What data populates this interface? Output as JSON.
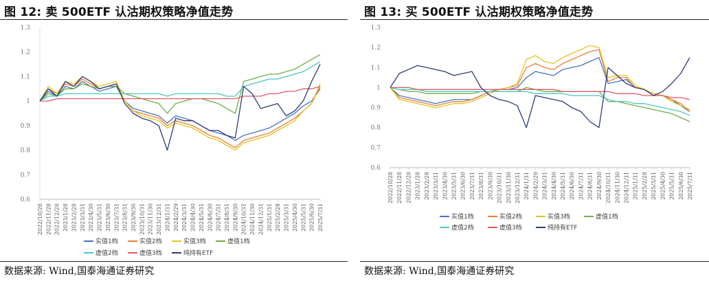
{
  "figures": [
    {
      "title": "图 12:  卖 500ETF 认沽期权策略净值走势",
      "source": "数据来源:  Wind,国泰海通证券研究"
    },
    {
      "title": "图 13:  买 500ETF 认沽期权策略净值走势",
      "source": "数据来源:  Wind,国泰海通证券研究"
    }
  ],
  "chart_data": [
    {
      "type": "line",
      "title": "",
      "xlabel": "",
      "ylabel": "",
      "ylim": [
        0.6,
        1.3
      ],
      "yticks": [
        "0.6",
        "0.7",
        "0.8",
        "0.9",
        "1",
        "1.1",
        "1.2",
        "1.3"
      ],
      "grid": false,
      "legend_position": "bottom",
      "categories": [
        "2022/10/28",
        "2022/11/28",
        "2022/12/28",
        "2023/1/28",
        "2023/2/28",
        "2023/3/31",
        "2023/4/30",
        "2023/5/31",
        "2023/6/30",
        "2023/7/31",
        "2023/8/31",
        "2023/9/30",
        "2023/10/31",
        "2023/11/30",
        "2023/12/31",
        "2024/1/31",
        "2024/2/29",
        "2024/3/31",
        "2024/4/30",
        "2024/5/31",
        "2024/6/30",
        "2024/7/31",
        "2024/8/31",
        "2024/9/30",
        "2024/10/31",
        "2024/11/30",
        "2024/12/31",
        "2025/1/31",
        "2025/2/28",
        "2025/3/31",
        "2025/4/30",
        "2025/5/31",
        "2025/6/30",
        "2025/7/31"
      ],
      "series": [
        {
          "name": "实值1档",
          "color": "#4472c4",
          "values": [
            1.0,
            1.04,
            1.02,
            1.06,
            1.05,
            1.08,
            1.06,
            1.04,
            1.05,
            1.06,
            1.0,
            0.97,
            0.96,
            0.95,
            0.94,
            0.91,
            0.94,
            0.93,
            0.92,
            0.9,
            0.88,
            0.87,
            0.86,
            0.84,
            0.86,
            0.87,
            0.88,
            0.89,
            0.91,
            0.93,
            0.95,
            0.98,
            1.0,
            1.05
          ]
        },
        {
          "name": "实值2档",
          "color": "#ed7d31",
          "values": [
            1.0,
            1.05,
            1.03,
            1.07,
            1.06,
            1.09,
            1.07,
            1.05,
            1.06,
            1.07,
            1.0,
            0.96,
            0.95,
            0.94,
            0.93,
            0.9,
            0.92,
            0.91,
            0.9,
            0.88,
            0.86,
            0.85,
            0.83,
            0.81,
            0.84,
            0.85,
            0.86,
            0.87,
            0.89,
            0.91,
            0.93,
            0.96,
            0.99,
            1.06
          ]
        },
        {
          "name": "实值3档",
          "color": "#e3c21f",
          "values": [
            1.0,
            1.06,
            1.03,
            1.08,
            1.07,
            1.1,
            1.08,
            1.06,
            1.07,
            1.08,
            1.0,
            0.96,
            0.94,
            0.93,
            0.92,
            0.89,
            0.91,
            0.9,
            0.89,
            0.87,
            0.85,
            0.84,
            0.82,
            0.8,
            0.83,
            0.84,
            0.85,
            0.86,
            0.88,
            0.9,
            0.92,
            0.96,
            0.99,
            1.07
          ]
        },
        {
          "name": "虚值1档",
          "color": "#70ad47",
          "values": [
            1.0,
            1.03,
            1.02,
            1.05,
            1.05,
            1.07,
            1.06,
            1.05,
            1.06,
            1.06,
            1.03,
            1.02,
            1.01,
            1.0,
            0.99,
            0.95,
            0.99,
            1.0,
            1.01,
            1.01,
            1.0,
            0.99,
            0.97,
            0.95,
            1.08,
            1.09,
            1.1,
            1.11,
            1.11,
            1.12,
            1.13,
            1.15,
            1.17,
            1.19
          ]
        },
        {
          "name": "虚值2档",
          "color": "#4bc6c6",
          "values": [
            1.0,
            1.02,
            1.02,
            1.03,
            1.03,
            1.03,
            1.03,
            1.03,
            1.03,
            1.03,
            1.03,
            1.03,
            1.03,
            1.03,
            1.03,
            1.02,
            1.03,
            1.03,
            1.03,
            1.03,
            1.03,
            1.03,
            1.02,
            1.02,
            1.06,
            1.07,
            1.08,
            1.09,
            1.09,
            1.1,
            1.11,
            1.12,
            1.14,
            1.16
          ]
        },
        {
          "name": "虚值3档",
          "color": "#e05a64",
          "values": [
            1.0,
            1.0,
            1.01,
            1.01,
            1.01,
            1.01,
            1.01,
            1.01,
            1.01,
            1.01,
            1.01,
            1.01,
            1.01,
            1.01,
            1.01,
            1.01,
            1.01,
            1.01,
            1.01,
            1.01,
            1.01,
            1.01,
            1.01,
            1.01,
            1.02,
            1.02,
            1.02,
            1.03,
            1.03,
            1.04,
            1.04,
            1.05,
            1.05,
            1.06
          ]
        },
        {
          "name": "纯持有ETF",
          "color": "#2b3a7a",
          "values": [
            1.0,
            1.05,
            1.02,
            1.08,
            1.06,
            1.1,
            1.08,
            1.05,
            1.06,
            1.07,
            0.99,
            0.95,
            0.93,
            0.92,
            0.9,
            0.8,
            0.93,
            0.92,
            0.92,
            0.9,
            0.88,
            0.88,
            0.86,
            0.85,
            1.06,
            1.03,
            0.97,
            0.98,
            0.99,
            0.94,
            0.96,
            1.0,
            1.08,
            1.15
          ]
        }
      ]
    },
    {
      "type": "line",
      "title": "",
      "xlabel": "",
      "ylabel": "",
      "ylim": [
        0.6,
        1.3
      ],
      "yticks": [
        "0.6",
        "0.7",
        "0.8",
        "0.9",
        "1",
        "1.1",
        "1.2",
        "1.3"
      ],
      "grid": false,
      "legend_position": "bottom",
      "categories": [
        "2022/10/28",
        "2022/11/28",
        "2022/12/28",
        "2023/1/28",
        "2023/2/28",
        "2023/3/31",
        "2023/4/30",
        "2023/5/31",
        "2023/6/30",
        "2023/7/31",
        "2023/8/31",
        "2023/9/30",
        "2023/10/31",
        "2023/11/30",
        "2023/12/31",
        "2024/1/31",
        "2024/2/29",
        "2024/3/31",
        "2024/4/30",
        "2024/5/31",
        "2024/6/30",
        "2024/7/31",
        "2024/8/31",
        "2024/9/30",
        "2024/10/31",
        "2024/11/30",
        "2024/12/31",
        "2025/1/31",
        "2025/2/28",
        "2025/3/31",
        "2025/4/30",
        "2025/5/31",
        "2025/6/30",
        "2025/7/31"
      ],
      "series": [
        {
          "name": "实值1档",
          "color": "#4472c4",
          "values": [
            1.0,
            0.96,
            0.95,
            0.94,
            0.93,
            0.92,
            0.93,
            0.94,
            0.94,
            0.94,
            0.96,
            0.98,
            0.99,
            0.99,
            1.0,
            1.05,
            1.08,
            1.07,
            1.06,
            1.09,
            1.1,
            1.11,
            1.13,
            1.15,
            1.02,
            1.03,
            1.04,
            1.0,
            0.99,
            0.97,
            0.96,
            0.94,
            0.91,
            0.88
          ]
        },
        {
          "name": "实值2档",
          "color": "#ed7d31",
          "values": [
            1.0,
            0.95,
            0.94,
            0.93,
            0.92,
            0.91,
            0.92,
            0.93,
            0.93,
            0.94,
            0.96,
            0.98,
            0.99,
            1.0,
            1.01,
            1.1,
            1.12,
            1.1,
            1.09,
            1.12,
            1.14,
            1.16,
            1.18,
            1.19,
            1.03,
            1.05,
            1.05,
            1.0,
            0.99,
            0.97,
            0.96,
            0.94,
            0.92,
            0.88
          ]
        },
        {
          "name": "实值3档",
          "color": "#e3c21f",
          "values": [
            1.0,
            0.94,
            0.93,
            0.92,
            0.91,
            0.9,
            0.91,
            0.92,
            0.92,
            0.93,
            0.95,
            0.97,
            0.99,
            1.0,
            1.02,
            1.14,
            1.16,
            1.13,
            1.12,
            1.15,
            1.17,
            1.19,
            1.21,
            1.2,
            1.05,
            1.06,
            1.06,
            1.01,
            0.99,
            0.97,
            0.96,
            0.93,
            0.91,
            0.89
          ]
        },
        {
          "name": "虚值1档",
          "color": "#70ad47",
          "values": [
            1.0,
            0.99,
            0.98,
            0.98,
            0.97,
            0.97,
            0.97,
            0.97,
            0.97,
            0.97,
            0.98,
            0.98,
            0.98,
            0.98,
            0.98,
            1.0,
            0.99,
            0.98,
            0.98,
            0.98,
            0.98,
            0.98,
            0.98,
            0.98,
            0.93,
            0.93,
            0.92,
            0.91,
            0.9,
            0.89,
            0.88,
            0.87,
            0.85,
            0.83
          ]
        },
        {
          "name": "虚值2档",
          "color": "#4bc6c6",
          "values": [
            1.0,
            0.99,
            0.99,
            0.99,
            0.98,
            0.98,
            0.98,
            0.98,
            0.98,
            0.98,
            0.98,
            0.98,
            0.98,
            0.98,
            0.98,
            0.98,
            0.97,
            0.97,
            0.97,
            0.97,
            0.96,
            0.96,
            0.96,
            0.96,
            0.94,
            0.93,
            0.93,
            0.92,
            0.92,
            0.91,
            0.9,
            0.89,
            0.88,
            0.86
          ]
        },
        {
          "name": "虚值3档",
          "color": "#e05a64",
          "values": [
            1.0,
            1.0,
            1.0,
            0.99,
            0.99,
            0.99,
            0.99,
            0.99,
            0.99,
            0.99,
            0.99,
            0.99,
            0.99,
            0.99,
            0.99,
            0.99,
            0.99,
            0.99,
            0.99,
            0.98,
            0.98,
            0.98,
            0.98,
            0.98,
            0.98,
            0.97,
            0.97,
            0.97,
            0.96,
            0.96,
            0.96,
            0.95,
            0.95,
            0.94
          ]
        },
        {
          "name": "纯持有ETF",
          "color": "#2b3a7a",
          "values": [
            1.0,
            1.07,
            1.09,
            1.11,
            1.1,
            1.09,
            1.08,
            1.06,
            1.07,
            1.08,
            1.0,
            0.96,
            0.94,
            0.93,
            0.91,
            0.8,
            0.96,
            0.95,
            0.94,
            0.93,
            0.9,
            0.88,
            0.83,
            0.8,
            1.1,
            1.06,
            1.02,
            1.0,
            0.99,
            0.96,
            0.98,
            1.02,
            1.07,
            1.15
          ]
        }
      ]
    }
  ]
}
